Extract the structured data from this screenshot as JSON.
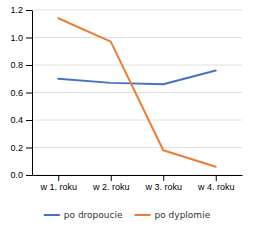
{
  "chart_data": {
    "type": "line",
    "categories": [
      "w 1. roku",
      "w 2. roku",
      "w 3. roku",
      "w 4. roku"
    ],
    "series": [
      {
        "name": "po dropoucie",
        "color": "#4472C4",
        "values": [
          0.7,
          0.67,
          0.66,
          0.76
        ]
      },
      {
        "name": "po dyplomie",
        "color": "#ED7D31",
        "values": [
          1.14,
          0.97,
          0.18,
          0.06
        ]
      }
    ],
    "ylim": [
      0,
      1.2
    ],
    "yticks": [
      {
        "value": 0,
        "label": "0.0"
      },
      0.2,
      0.4,
      0.6,
      0.8,
      {
        "value": 1,
        "label": "1.0"
      },
      1.2
    ],
    "grid": true,
    "legend": "bottom"
  }
}
